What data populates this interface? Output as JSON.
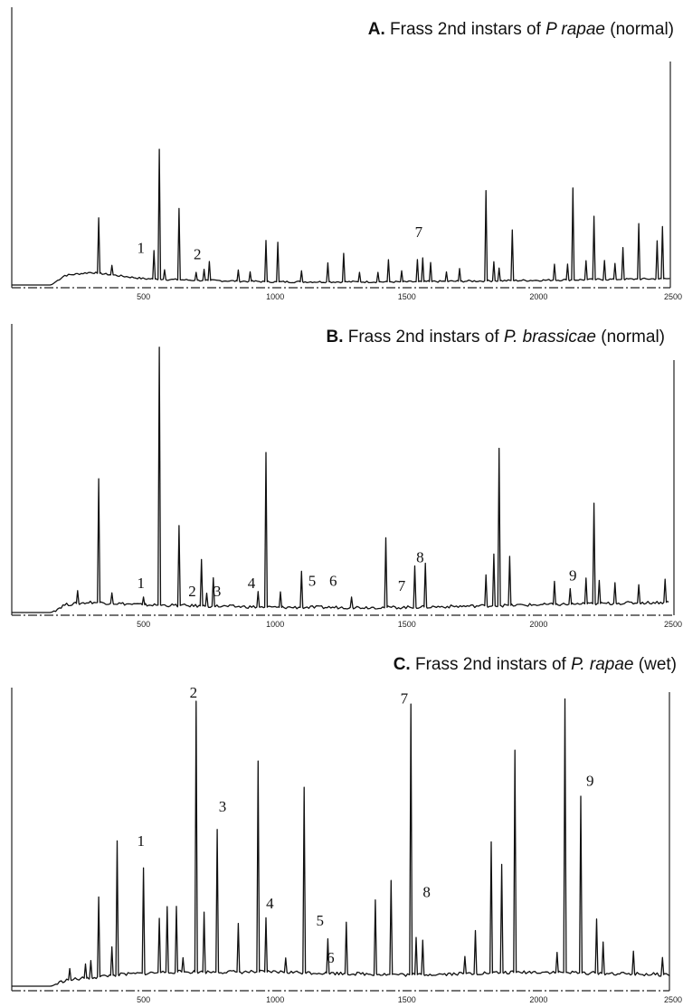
{
  "chart_data": [
    {
      "type": "line",
      "panel": "A",
      "title": {
        "letter": "A.",
        "before": " Frass 2nd instars of ",
        "species": "P rapae",
        "after": " (normal)"
      },
      "xlim": [
        0,
        2500
      ],
      "x_ticks": [
        500,
        1000,
        1500,
        2000,
        2500
      ],
      "y_max": 1.0,
      "baseline": [
        [
          0,
          0.0
        ],
        [
          150,
          0.0
        ],
        [
          200,
          0.06
        ],
        [
          300,
          0.08
        ],
        [
          400,
          0.06
        ],
        [
          500,
          0.04
        ],
        [
          700,
          0.03
        ],
        [
          1000,
          0.02
        ],
        [
          1500,
          0.02
        ],
        [
          2000,
          0.03
        ],
        [
          2500,
          0.04
        ]
      ],
      "peaks": [
        {
          "x": 330,
          "h": 0.35
        },
        {
          "x": 380,
          "h": 0.06
        },
        {
          "x": 540,
          "h": 0.18
        },
        {
          "x": 560,
          "h": 0.82,
          "label": "1"
        },
        {
          "x": 580,
          "h": 0.06
        },
        {
          "x": 635,
          "h": 0.45
        },
        {
          "x": 700,
          "h": 0.05
        },
        {
          "x": 730,
          "h": 0.07
        },
        {
          "x": 750,
          "h": 0.12
        },
        {
          "x": 860,
          "h": 0.07
        },
        {
          "x": 905,
          "h": 0.06
        },
        {
          "x": 965,
          "h": 0.26
        },
        {
          "x": 1010,
          "h": 0.25
        },
        {
          "x": 1100,
          "h": 0.07
        },
        {
          "x": 1200,
          "h": 0.12
        },
        {
          "x": 1260,
          "h": 0.18
        },
        {
          "x": 1320,
          "h": 0.06
        },
        {
          "x": 1390,
          "h": 0.06
        },
        {
          "x": 1430,
          "h": 0.14
        },
        {
          "x": 1480,
          "h": 0.07
        },
        {
          "x": 1540,
          "h": 0.14
        },
        {
          "x": 1560,
          "h": 0.15
        },
        {
          "x": 1590,
          "h": 0.12
        },
        {
          "x": 1650,
          "h": 0.06
        },
        {
          "x": 1700,
          "h": 0.08
        },
        {
          "x": 1800,
          "h": 0.57
        },
        {
          "x": 1830,
          "h": 0.12
        },
        {
          "x": 1850,
          "h": 0.08
        },
        {
          "x": 1900,
          "h": 0.32
        },
        {
          "x": 2060,
          "h": 0.1
        },
        {
          "x": 2110,
          "h": 0.1
        },
        {
          "x": 2130,
          "h": 0.58
        },
        {
          "x": 2180,
          "h": 0.12
        },
        {
          "x": 2210,
          "h": 0.4
        },
        {
          "x": 2250,
          "h": 0.12
        },
        {
          "x": 2290,
          "h": 0.1
        },
        {
          "x": 2320,
          "h": 0.2
        },
        {
          "x": 2380,
          "h": 0.35
        },
        {
          "x": 2450,
          "h": 0.24
        },
        {
          "x": 2470,
          "h": 0.33
        }
      ],
      "annotations": [
        {
          "text": "1",
          "x": 490,
          "h": 0.18
        },
        {
          "text": "2",
          "x": 705,
          "h": 0.14
        },
        {
          "text": "7",
          "x": 1545,
          "h": 0.28
        }
      ]
    },
    {
      "type": "line",
      "panel": "B",
      "title": {
        "letter": "B.",
        "before": " Frass 2nd instars of ",
        "species": "P. brassicae",
        "after": " (normal)"
      },
      "xlim": [
        0,
        2500
      ],
      "x_ticks": [
        500,
        1000,
        1500,
        2000,
        2500
      ],
      "y_max": 1.0,
      "baseline": [
        [
          0,
          0.0
        ],
        [
          150,
          0.0
        ],
        [
          200,
          0.03
        ],
        [
          300,
          0.04
        ],
        [
          500,
          0.03
        ],
        [
          1000,
          0.02
        ],
        [
          1500,
          0.02
        ],
        [
          2000,
          0.03
        ],
        [
          2500,
          0.04
        ]
      ],
      "peaks": [
        {
          "x": 250,
          "h": 0.05
        },
        {
          "x": 330,
          "h": 0.48
        },
        {
          "x": 380,
          "h": 0.04
        },
        {
          "x": 500,
          "h": 0.03
        },
        {
          "x": 560,
          "h": 1.0
        },
        {
          "x": 635,
          "h": 0.31
        },
        {
          "x": 720,
          "h": 0.18
        },
        {
          "x": 740,
          "h": 0.05
        },
        {
          "x": 765,
          "h": 0.11
        },
        {
          "x": 935,
          "h": 0.06
        },
        {
          "x": 965,
          "h": 0.6
        },
        {
          "x": 1020,
          "h": 0.06
        },
        {
          "x": 1100,
          "h": 0.14
        },
        {
          "x": 1290,
          "h": 0.04
        },
        {
          "x": 1420,
          "h": 0.27
        },
        {
          "x": 1530,
          "h": 0.16
        },
        {
          "x": 1570,
          "h": 0.17
        },
        {
          "x": 1800,
          "h": 0.12
        },
        {
          "x": 1830,
          "h": 0.2
        },
        {
          "x": 1850,
          "h": 0.61
        },
        {
          "x": 1890,
          "h": 0.19
        },
        {
          "x": 2060,
          "h": 0.09
        },
        {
          "x": 2120,
          "h": 0.06
        },
        {
          "x": 2180,
          "h": 0.1
        },
        {
          "x": 2210,
          "h": 0.39
        },
        {
          "x": 2230,
          "h": 0.09
        },
        {
          "x": 2290,
          "h": 0.08
        },
        {
          "x": 2380,
          "h": 0.07
        },
        {
          "x": 2480,
          "h": 0.09
        }
      ],
      "annotations": [
        {
          "text": "1",
          "x": 490,
          "h": 0.08
        },
        {
          "text": "2",
          "x": 685,
          "h": 0.05
        },
        {
          "text": "3",
          "x": 780,
          "h": 0.05
        },
        {
          "text": "4",
          "x": 910,
          "h": 0.08
        },
        {
          "text": "5",
          "x": 1140,
          "h": 0.09
        },
        {
          "text": "6",
          "x": 1220,
          "h": 0.09
        },
        {
          "text": "7",
          "x": 1480,
          "h": 0.07
        },
        {
          "text": "8",
          "x": 1550,
          "h": 0.18
        },
        {
          "text": "9",
          "x": 2130,
          "h": 0.11
        }
      ]
    },
    {
      "type": "line",
      "panel": "C",
      "title": {
        "letter": "C.",
        "before": " Frass 2nd instars of ",
        "species": "P. rapae",
        "after": " (wet)"
      },
      "xlim": [
        0,
        2500
      ],
      "x_ticks": [
        500,
        1000,
        1500,
        2000,
        2500
      ],
      "y_max": 1.0,
      "baseline": [
        [
          0,
          0.0
        ],
        [
          150,
          0.0
        ],
        [
          200,
          0.02
        ],
        [
          400,
          0.04
        ],
        [
          600,
          0.05
        ],
        [
          1000,
          0.05
        ],
        [
          1500,
          0.04
        ],
        [
          2000,
          0.05
        ],
        [
          2500,
          0.04
        ]
      ],
      "peaks": [
        {
          "x": 220,
          "h": 0.04
        },
        {
          "x": 280,
          "h": 0.05
        },
        {
          "x": 300,
          "h": 0.06
        },
        {
          "x": 330,
          "h": 0.28
        },
        {
          "x": 380,
          "h": 0.1
        },
        {
          "x": 400,
          "h": 0.47
        },
        {
          "x": 500,
          "h": 0.37
        },
        {
          "x": 560,
          "h": 0.19
        },
        {
          "x": 590,
          "h": 0.23
        },
        {
          "x": 625,
          "h": 0.23
        },
        {
          "x": 650,
          "h": 0.05
        },
        {
          "x": 700,
          "h": 0.95
        },
        {
          "x": 730,
          "h": 0.21
        },
        {
          "x": 780,
          "h": 0.5
        },
        {
          "x": 860,
          "h": 0.17
        },
        {
          "x": 935,
          "h": 0.74
        },
        {
          "x": 965,
          "h": 0.19
        },
        {
          "x": 1040,
          "h": 0.05
        },
        {
          "x": 1110,
          "h": 0.65
        },
        {
          "x": 1200,
          "h": 0.12
        },
        {
          "x": 1270,
          "h": 0.18
        },
        {
          "x": 1380,
          "h": 0.26
        },
        {
          "x": 1440,
          "h": 0.33
        },
        {
          "x": 1515,
          "h": 0.95
        },
        {
          "x": 1535,
          "h": 0.13
        },
        {
          "x": 1560,
          "h": 0.12
        },
        {
          "x": 1720,
          "h": 0.06
        },
        {
          "x": 1760,
          "h": 0.15
        },
        {
          "x": 1820,
          "h": 0.46
        },
        {
          "x": 1860,
          "h": 0.38
        },
        {
          "x": 1910,
          "h": 0.78
        },
        {
          "x": 2070,
          "h": 0.07
        },
        {
          "x": 2100,
          "h": 0.96
        },
        {
          "x": 2160,
          "h": 0.62
        },
        {
          "x": 2220,
          "h": 0.19
        },
        {
          "x": 2245,
          "h": 0.11
        },
        {
          "x": 2360,
          "h": 0.08
        },
        {
          "x": 2470,
          "h": 0.06
        }
      ],
      "annotations": [
        {
          "text": "1",
          "x": 490,
          "h": 0.48
        },
        {
          "text": "2",
          "x": 690,
          "h": 1.0
        },
        {
          "text": "3",
          "x": 800,
          "h": 0.6
        },
        {
          "text": "4",
          "x": 980,
          "h": 0.26
        },
        {
          "text": "5",
          "x": 1170,
          "h": 0.2
        },
        {
          "text": "6",
          "x": 1210,
          "h": 0.07
        },
        {
          "text": "7",
          "x": 1490,
          "h": 0.98
        },
        {
          "text": "8",
          "x": 1575,
          "h": 0.3
        },
        {
          "text": "9",
          "x": 2195,
          "h": 0.69
        }
      ]
    }
  ]
}
